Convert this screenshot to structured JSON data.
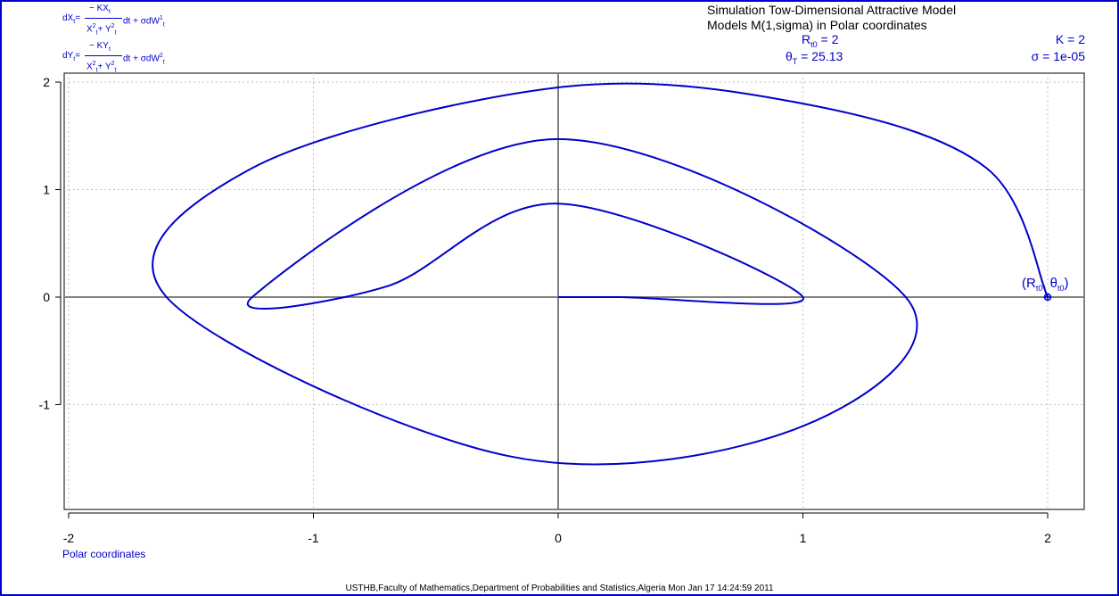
{
  "window": {
    "border_color": "#0000cc"
  },
  "header": {
    "title_line1": "Simulation Tow-Dimensional Attractive Model",
    "title_line2": "Models M(1,sigma) in Polar coordinates",
    "r0_label": "R",
    "r0_sub": "t0",
    "r0_value": " = 2",
    "theta_label": "θ",
    "theta_sub": "T",
    "theta_value": " = 25.13",
    "k_param": "K = 2",
    "sigma_param": "σ = 1e-05"
  },
  "equations": {
    "eq1_lhs": "dX",
    "eq1_lhs_sub": "t",
    "eq1_num": "− KX",
    "eq1_num_sub": "t",
    "eq1_den": "X",
    "eq1_den2": "+ Y",
    "eq1_tail": "dt + σdW",
    "eq1_tail_sup": "1",
    "eq1_tail_sub": "t",
    "eq2_lhs": "dY",
    "eq2_lhs_sub": "t",
    "eq2_num": "− KY",
    "eq2_num_sub": "t",
    "eq2_den": "X",
    "eq2_den2": "+ Y",
    "eq2_tail": "dt + σdW",
    "eq2_tail_sup": "2",
    "eq2_tail_sub": "t",
    "sup2": "2",
    "sub_t": "t"
  },
  "footer": {
    "xlabel": "Polar coordinates",
    "credit": "USTHB,Faculty of Mathematics,Department of Probabilities and Statistics,Algeria Mon Jan 17 14:24:59 2011"
  },
  "start_label": {
    "open": "(R",
    "sub1": "t0",
    "mid": ", θ",
    "sub2": "t0",
    "close": ")"
  },
  "colors": {
    "curve": "#0000cc",
    "axes": "#808080",
    "grid": "#bfbfbf",
    "text": "#000000"
  },
  "chart_data": {
    "type": "line",
    "title": "Simulation Tow-Dimensional Attractive Model",
    "subtitle": "Models M(1,sigma) in Polar coordinates",
    "xlabel": "Polar coordinates",
    "ylabel": "",
    "xlim": [
      -2,
      2
    ],
    "ylim": [
      -1.9,
      2.0
    ],
    "x_ticks": [
      -2,
      -1,
      0,
      1,
      2
    ],
    "x_tick_labels": [
      "-2",
      "-1",
      "0",
      "1",
      "2"
    ],
    "y_ticks": [
      -1,
      0,
      1,
      2
    ],
    "y_tick_labels": [
      "-1",
      "0",
      "1",
      "2"
    ],
    "grid": true,
    "grid_style": "dotted",
    "series": [
      {
        "kind": "spiral",
        "start_radius": 2,
        "end_radius": 0,
        "theta_total": 25.13,
        "x": [
          2.0,
          1.75,
          1.0,
          0.0,
          -1.25,
          -1.6,
          -0.2,
          1.0,
          1.42,
          0.0,
          -1.25,
          -0.7,
          0.0,
          1.0,
          0.25,
          0.0
        ],
        "y": [
          0.0,
          1.2,
          1.8,
          1.95,
          1.2,
          0.0,
          -1.48,
          -1.2,
          0.0,
          1.47,
          0.0,
          0.1,
          0.87,
          0.0,
          0.0,
          0.0
        ]
      }
    ],
    "markers": [
      {
        "x": 2,
        "y": 0
      }
    ],
    "parameters": {
      "R_t0": 2,
      "theta_T": 25.13,
      "K": 2,
      "sigma": "1e-05"
    }
  }
}
